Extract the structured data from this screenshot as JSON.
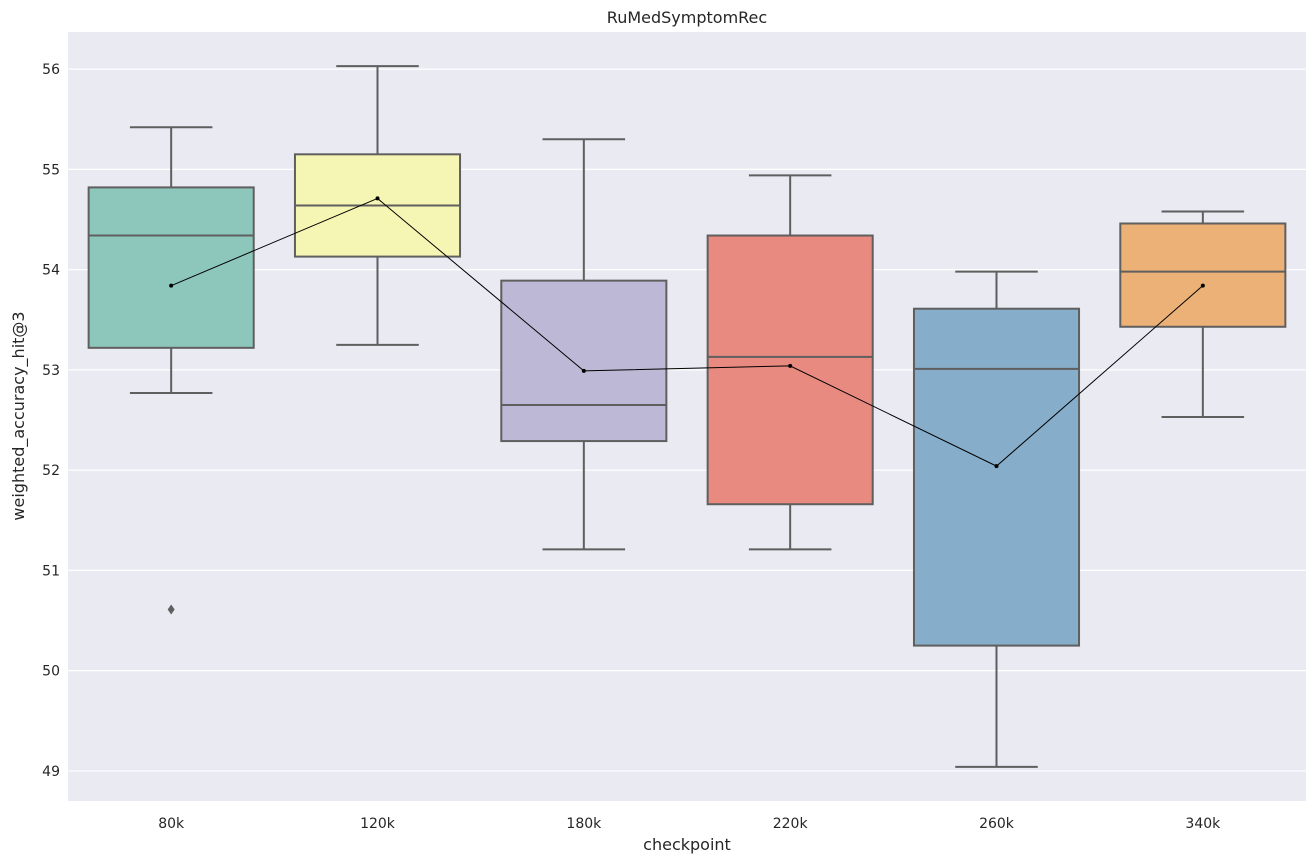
{
  "chart_data": {
    "type": "box",
    "title": "RuMedSymptomRec",
    "xlabel": "checkpoint",
    "ylabel": "weighted_accuracy_hit@3",
    "ylim": [
      48.7,
      56.37
    ],
    "yticks": [
      49,
      50,
      51,
      52,
      53,
      54,
      55,
      56
    ],
    "grid": true,
    "categories": [
      "80k",
      "120k",
      "180k",
      "220k",
      "260k",
      "340k"
    ],
    "boxes": [
      {
        "category": "80k",
        "whisker_low": 52.77,
        "q1": 53.22,
        "median": 54.34,
        "q3": 54.82,
        "whisker_high": 55.42,
        "mean": 53.84,
        "outliers": [
          50.61
        ],
        "color": "#8dc7bc"
      },
      {
        "category": "120k",
        "whisker_low": 53.25,
        "q1": 54.13,
        "median": 54.64,
        "q3": 55.15,
        "whisker_high": 56.03,
        "mean": 54.71,
        "outliers": [],
        "color": "#f6f6b4"
      },
      {
        "category": "180k",
        "whisker_low": 51.21,
        "q1": 52.29,
        "median": 52.65,
        "q3": 53.89,
        "whisker_high": 55.3,
        "mean": 52.99,
        "outliers": [],
        "color": "#bdb8d5"
      },
      {
        "category": "220k",
        "whisker_low": 51.21,
        "q1": 51.66,
        "median": 53.13,
        "q3": 54.34,
        "whisker_high": 54.94,
        "mean": 53.04,
        "outliers": [],
        "color": "#e88a80"
      },
      {
        "category": "260k",
        "whisker_low": 49.04,
        "q1": 50.25,
        "median": 53.01,
        "q3": 53.61,
        "whisker_high": 53.98,
        "mean": 52.04,
        "outliers": [],
        "color": "#86adc9"
      },
      {
        "category": "340k",
        "whisker_low": 52.53,
        "q1": 53.43,
        "median": 53.98,
        "q3": 54.46,
        "whisker_high": 54.58,
        "mean": 53.84,
        "outliers": [],
        "color": "#ebb176"
      }
    ]
  }
}
